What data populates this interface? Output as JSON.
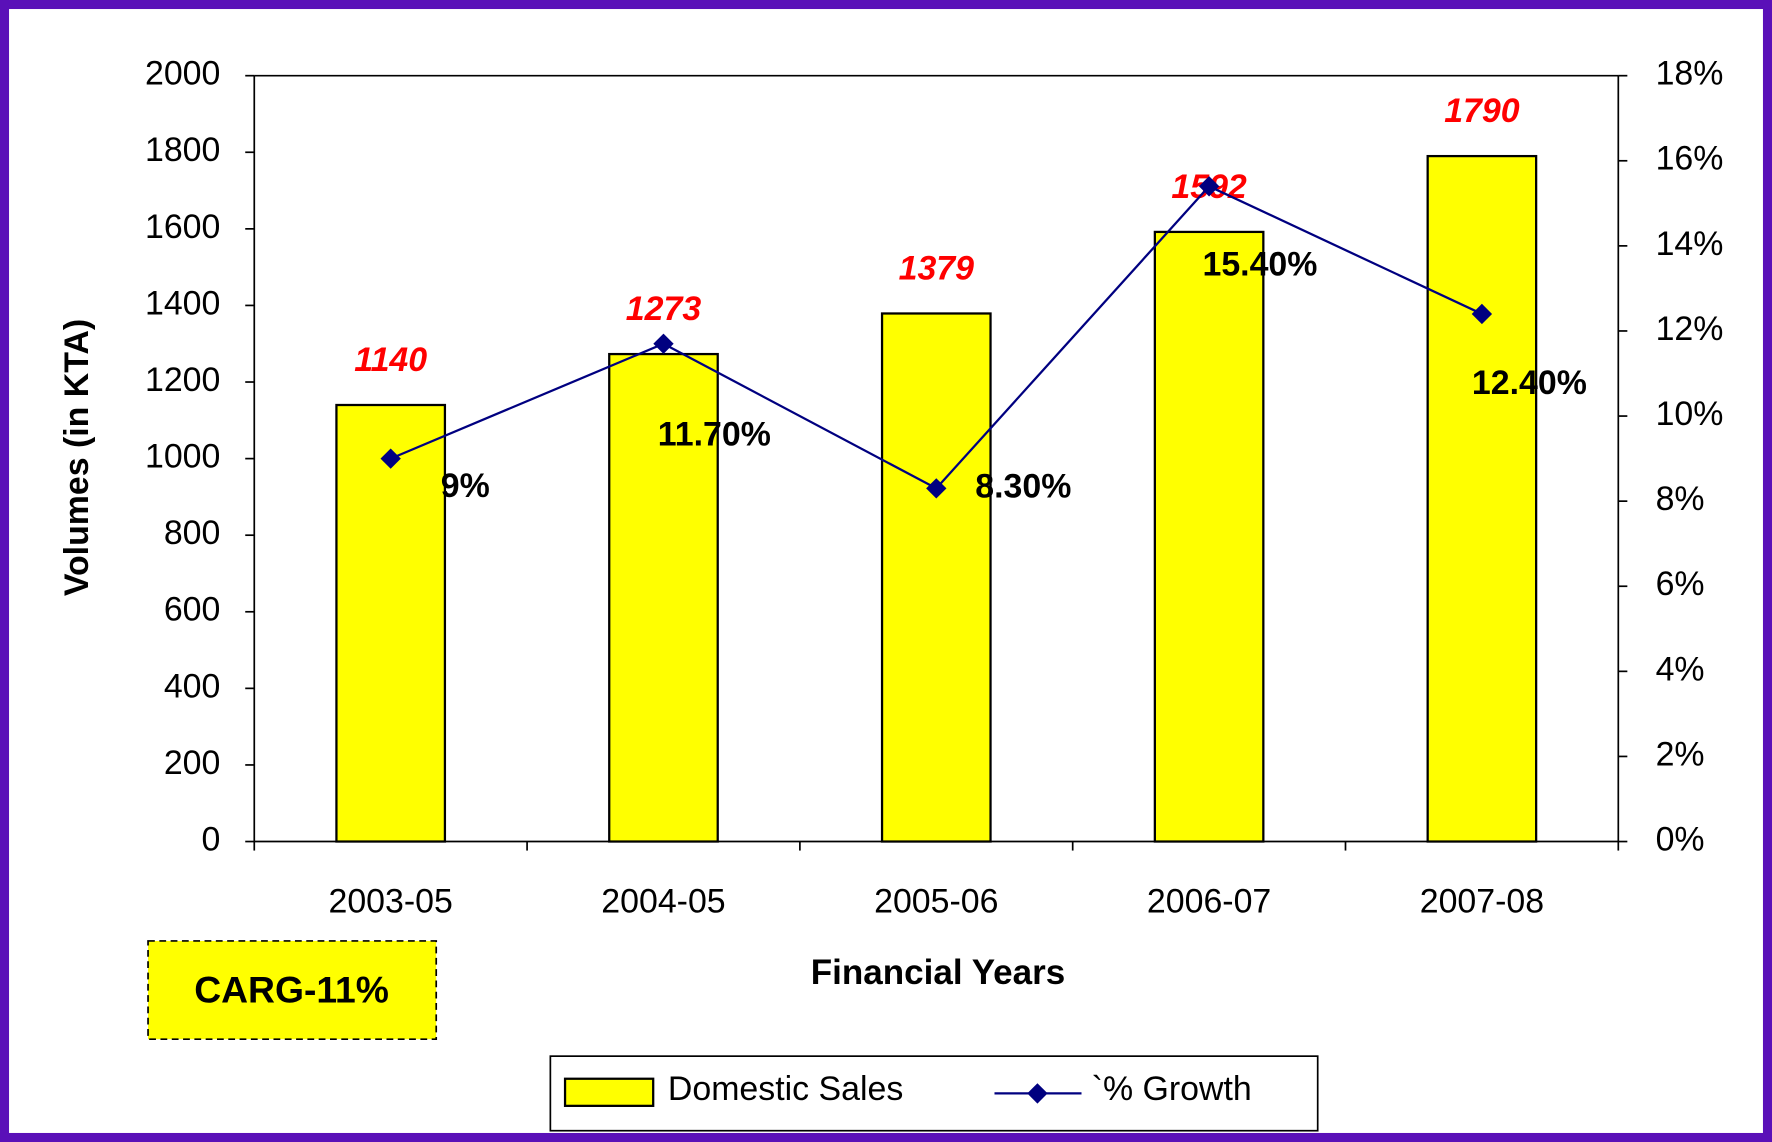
{
  "chart_data": {
    "type": "bar",
    "y_label": "Volumes (in KTA)",
    "x_label": "Financial Years",
    "annotation": "CARG-11%",
    "categories": [
      "2003-05",
      "2004-05",
      "2005-06",
      "2006-07",
      "2007-08"
    ],
    "series": [
      {
        "name": "Domestic Sales",
        "type": "bar",
        "color": "#ffff00",
        "values": [
          1140,
          1273,
          1379,
          1592,
          1790
        ]
      },
      {
        "name": "`% Growth",
        "type": "line",
        "axis": "y2",
        "color": "#000080",
        "values": [
          9,
          11.7,
          8.3,
          15.4,
          12.4
        ],
        "value_labels": [
          "9%",
          "11.70%",
          "8.30%",
          "15.40%",
          "12.40%"
        ]
      }
    ],
    "ylim": [
      0,
      2000
    ],
    "yticks": [
      0,
      200,
      400,
      600,
      800,
      1000,
      1200,
      1400,
      1600,
      1800,
      2000
    ],
    "y2lim": [
      0,
      18
    ],
    "y2ticks": [
      {
        "value": 0,
        "label": "0%"
      },
      {
        "value": 2,
        "label": "2%"
      },
      {
        "value": 4,
        "label": "4%"
      },
      {
        "value": 6,
        "label": "6%"
      },
      {
        "value": 8,
        "label": "8%"
      },
      {
        "value": 10,
        "label": "10%"
      },
      {
        "value": 12,
        "label": "12%"
      },
      {
        "value": 14,
        "label": "14%"
      },
      {
        "value": 16,
        "label": "16%"
      },
      {
        "value": 18,
        "label": "18%"
      }
    ],
    "grid": false,
    "legend": "bottom"
  }
}
